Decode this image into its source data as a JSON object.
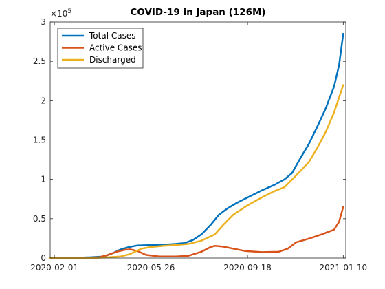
{
  "chart_data": {
    "type": "line",
    "title": "COVID-19 in Japan (126M)",
    "xlabel": "",
    "ylabel": "",
    "y_exponent_label": "×10",
    "y_exponent_power": "5",
    "x_ticks": [
      "2020-02-01",
      "2020-05-26",
      "2020-09-18",
      "2021-01-10"
    ],
    "y_ticks": [
      "0",
      "0.5",
      "1",
      "1.5",
      "2",
      "2.5",
      "3"
    ],
    "y_tick_values": [
      0,
      0.5,
      1,
      1.5,
      2,
      2.5,
      3
    ],
    "xlim": [
      "2020-01-27",
      "2021-01-13"
    ],
    "ylim": [
      0,
      3
    ],
    "y_unit_scale": 100000,
    "legend_position": "top-left",
    "grid": false,
    "series": [
      {
        "name": "Total Cases",
        "color": "#0072BD",
        "points": [
          [
            "2020-01-27",
            0
          ],
          [
            "2020-02-20",
            0.001
          ],
          [
            "2020-03-15",
            0.01
          ],
          [
            "2020-03-31",
            0.02
          ],
          [
            "2020-04-10",
            0.06
          ],
          [
            "2020-04-20",
            0.11
          ],
          [
            "2020-04-30",
            0.14
          ],
          [
            "2020-05-10",
            0.16
          ],
          [
            "2020-05-26",
            0.165
          ],
          [
            "2020-06-10",
            0.17
          ],
          [
            "2020-06-25",
            0.18
          ],
          [
            "2020-07-05",
            0.19
          ],
          [
            "2020-07-15",
            0.23
          ],
          [
            "2020-07-25",
            0.3
          ],
          [
            "2020-08-05",
            0.42
          ],
          [
            "2020-08-15",
            0.55
          ],
          [
            "2020-08-25",
            0.63
          ],
          [
            "2020-09-05",
            0.7
          ],
          [
            "2020-09-18",
            0.77
          ],
          [
            "2020-10-05",
            0.86
          ],
          [
            "2020-10-20",
            0.93
          ],
          [
            "2020-11-01",
            1.0
          ],
          [
            "2020-11-10",
            1.08
          ],
          [
            "2020-11-20",
            1.27
          ],
          [
            "2020-11-30",
            1.45
          ],
          [
            "2020-12-10",
            1.67
          ],
          [
            "2020-12-20",
            1.9
          ],
          [
            "2020-12-30",
            2.18
          ],
          [
            "2021-01-05",
            2.45
          ],
          [
            "2021-01-10",
            2.85
          ]
        ]
      },
      {
        "name": "Active Cases",
        "color": "#D95319",
        "points": [
          [
            "2020-01-27",
            0
          ],
          [
            "2020-03-01",
            0.002
          ],
          [
            "2020-03-25",
            0.01
          ],
          [
            "2020-04-05",
            0.04
          ],
          [
            "2020-04-15",
            0.08
          ],
          [
            "2020-04-25",
            0.105
          ],
          [
            "2020-05-01",
            0.11
          ],
          [
            "2020-05-10",
            0.09
          ],
          [
            "2020-05-20",
            0.04
          ],
          [
            "2020-06-05",
            0.02
          ],
          [
            "2020-06-25",
            0.02
          ],
          [
            "2020-07-10",
            0.03
          ],
          [
            "2020-07-25",
            0.08
          ],
          [
            "2020-08-05",
            0.14
          ],
          [
            "2020-08-10",
            0.155
          ],
          [
            "2020-08-20",
            0.145
          ],
          [
            "2020-09-01",
            0.12
          ],
          [
            "2020-09-15",
            0.09
          ],
          [
            "2020-10-05",
            0.075
          ],
          [
            "2020-10-25",
            0.08
          ],
          [
            "2020-11-05",
            0.12
          ],
          [
            "2020-11-15",
            0.2
          ],
          [
            "2020-12-01",
            0.25
          ],
          [
            "2020-12-15",
            0.3
          ],
          [
            "2020-12-30",
            0.36
          ],
          [
            "2021-01-05",
            0.46
          ],
          [
            "2021-01-10",
            0.65
          ]
        ]
      },
      {
        "name": "Discharged",
        "color": "#EDB120",
        "points": [
          [
            "2020-01-27",
            0
          ],
          [
            "2020-03-20",
            0.001
          ],
          [
            "2020-04-05",
            0.01
          ],
          [
            "2020-04-20",
            0.02
          ],
          [
            "2020-05-01",
            0.05
          ],
          [
            "2020-05-15",
            0.12
          ],
          [
            "2020-05-26",
            0.14
          ],
          [
            "2020-06-10",
            0.155
          ],
          [
            "2020-06-25",
            0.165
          ],
          [
            "2020-07-10",
            0.18
          ],
          [
            "2020-07-25",
            0.22
          ],
          [
            "2020-08-10",
            0.3
          ],
          [
            "2020-08-20",
            0.42
          ],
          [
            "2020-09-01",
            0.55
          ],
          [
            "2020-09-18",
            0.67
          ],
          [
            "2020-10-05",
            0.77
          ],
          [
            "2020-10-20",
            0.85
          ],
          [
            "2020-11-01",
            0.9
          ],
          [
            "2020-11-15",
            1.05
          ],
          [
            "2020-11-30",
            1.22
          ],
          [
            "2020-12-10",
            1.4
          ],
          [
            "2020-12-20",
            1.6
          ],
          [
            "2020-12-30",
            1.85
          ],
          [
            "2021-01-10",
            2.2
          ]
        ]
      }
    ]
  }
}
